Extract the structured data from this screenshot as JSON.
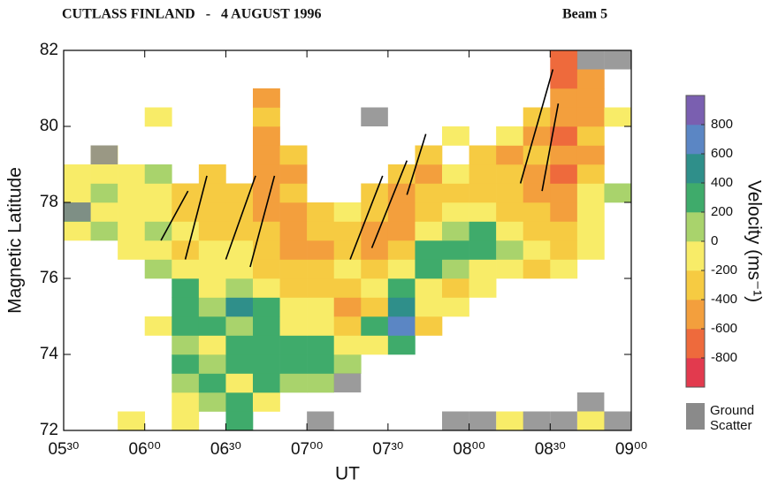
{
  "chart_data": {
    "type": "heatmap",
    "title": "CUTLASS FINLAND   -   4 AUGUST 1996",
    "subtitle": "Beam 5",
    "x_label": "UT",
    "y_label": "Magnetic Latitude",
    "xlim": [
      330,
      540
    ],
    "ylim": [
      72,
      82
    ],
    "xticks": [
      {
        "value": 330,
        "label": "05³⁰"
      },
      {
        "value": 360,
        "label": "06⁰⁰"
      },
      {
        "value": 390,
        "label": "06³⁰"
      },
      {
        "value": 420,
        "label": "07⁰⁰"
      },
      {
        "value": 450,
        "label": "07³⁰"
      },
      {
        "value": 480,
        "label": "08⁰⁰"
      },
      {
        "value": 510,
        "label": "08³⁰"
      },
      {
        "value": 540,
        "label": "09⁰⁰"
      }
    ],
    "yticks": [
      72,
      74,
      76,
      78,
      80,
      82
    ],
    "xbins": [
      330,
      340,
      350,
      360,
      370,
      380,
      390,
      400,
      410,
      420,
      430,
      440,
      450,
      460,
      470,
      480,
      490,
      500,
      510,
      520,
      530,
      540
    ],
    "ybins": [
      72,
      72.5,
      73,
      73.5,
      74,
      74.5,
      75,
      75.5,
      76,
      76.5,
      77,
      77.5,
      78,
      78.5,
      79,
      79.5,
      80,
      80.5,
      81,
      81.5,
      82
    ],
    "z": [
      [
        null,
        null,
        -200,
        null,
        -100,
        null,
        200,
        null,
        null,
        null,
        null,
        null,
        null,
        null,
        null,
        null,
        -200,
        null,
        null,
        -100,
        null
      ],
      [
        null,
        null,
        null,
        null,
        -100,
        100,
        200,
        -100,
        null,
        null,
        null,
        null,
        null,
        null,
        null,
        null,
        null,
        null,
        null,
        null,
        null
      ],
      [
        null,
        null,
        null,
        null,
        100,
        200,
        -100,
        200,
        100,
        0,
        null,
        null,
        null,
        null,
        null,
        null,
        null,
        null,
        null,
        null,
        null
      ],
      [
        null,
        null,
        null,
        null,
        200,
        0,
        300,
        300,
        200,
        200,
        100,
        null,
        null,
        null,
        null,
        null,
        null,
        null,
        null,
        null,
        null
      ],
      [
        null,
        null,
        null,
        null,
        100,
        -100,
        200,
        200,
        300,
        200,
        -100,
        -200,
        300,
        null,
        null,
        null,
        null,
        null,
        null,
        null,
        null
      ],
      [
        null,
        null,
        null,
        -100,
        200,
        300,
        100,
        200,
        -200,
        -100,
        -300,
        200,
        600,
        -300,
        null,
        null,
        null,
        null,
        null,
        null,
        null
      ],
      [
        null,
        null,
        null,
        null,
        300,
        100,
        400,
        200,
        -100,
        -200,
        -600,
        -300,
        500,
        -200,
        -100,
        null,
        null,
        null,
        null,
        null,
        null
      ],
      [
        null,
        null,
        null,
        null,
        200,
        -100,
        100,
        -200,
        -300,
        -400,
        -300,
        -200,
        300,
        -200,
        -300,
        -100,
        null,
        null,
        null,
        null,
        null
      ],
      [
        null,
        null,
        null,
        100,
        -200,
        -100,
        -200,
        -300,
        -400,
        -300,
        -200,
        -300,
        -200,
        300,
        100,
        -100,
        -200,
        -300,
        -200,
        null,
        null
      ],
      [
        null,
        null,
        -200,
        -100,
        -300,
        -200,
        -200,
        -400,
        -500,
        -500,
        -400,
        -500,
        -400,
        200,
        300,
        200,
        100,
        -200,
        -300,
        -100,
        null
      ],
      [
        -100,
        100,
        -100,
        0,
        -200,
        -300,
        -300,
        -400,
        -500,
        -400,
        -300,
        -500,
        -600,
        -200,
        100,
        200,
        -200,
        -300,
        -400,
        -100,
        null
      ],
      [
        300,
        -200,
        -100,
        -200,
        -300,
        -400,
        -400,
        -500,
        -600,
        -300,
        -200,
        -400,
        -600,
        -300,
        -200,
        -100,
        -300,
        -400,
        -500,
        -200,
        null
      ],
      [
        -100,
        100,
        -200,
        -200,
        -300,
        -400,
        -300,
        -500,
        -400,
        null,
        null,
        -300,
        -500,
        -400,
        -300,
        -300,
        -400,
        -600,
        -500,
        -200,
        100
      ],
      [
        -200,
        -100,
        -200,
        100,
        null,
        -300,
        null,
        -600,
        -500,
        null,
        null,
        null,
        -400,
        -500,
        -200,
        -400,
        -300,
        -500,
        -700,
        -300,
        null
      ],
      [
        null,
        -100,
        null,
        null,
        null,
        null,
        null,
        -600,
        -400,
        null,
        null,
        null,
        null,
        -300,
        null,
        -300,
        -500,
        -400,
        -600,
        -600,
        null
      ],
      [
        null,
        null,
        null,
        null,
        null,
        null,
        null,
        -500,
        null,
        null,
        null,
        null,
        null,
        null,
        -100,
        null,
        -200,
        -500,
        -700,
        -400,
        null
      ],
      [
        null,
        null,
        null,
        -200,
        null,
        null,
        null,
        -400,
        null,
        null,
        null,
        null,
        null,
        null,
        null,
        null,
        null,
        -300,
        -600,
        -500,
        -100
      ],
      [
        null,
        null,
        null,
        null,
        null,
        null,
        null,
        -500,
        null,
        null,
        null,
        null,
        null,
        null,
        null,
        null,
        null,
        null,
        -600,
        -500,
        null
      ],
      [
        null,
        null,
        null,
        null,
        null,
        null,
        null,
        null,
        null,
        null,
        null,
        null,
        null,
        null,
        null,
        null,
        null,
        null,
        -800,
        -600,
        null
      ],
      [
        null,
        null,
        null,
        null,
        null,
        null,
        null,
        null,
        null,
        null,
        null,
        null,
        null,
        null,
        null,
        null,
        null,
        null,
        -700,
        null,
        null
      ]
    ],
    "ground_scatter": {
      "label": [
        "Ground",
        "Scatter"
      ],
      "color": "#8a8a8a",
      "x": [
        335,
        345,
        425,
        435,
        475,
        485,
        505,
        515,
        525,
        535,
        525,
        535,
        445
      ],
      "y": [
        77.75,
        79.25,
        72.25,
        73.25,
        72.25,
        72.25,
        72.25,
        72.25,
        81.75,
        81.75,
        72.75,
        72.25,
        80.25
      ]
    },
    "lines": [
      {
        "x": [
          366,
          376
        ],
        "y": [
          77.0,
          78.3
        ]
      },
      {
        "x": [
          375,
          383
        ],
        "y": [
          76.5,
          78.7
        ]
      },
      {
        "x": [
          390,
          401
        ],
        "y": [
          76.5,
          78.7
        ]
      },
      {
        "x": [
          399,
          408
        ],
        "y": [
          76.3,
          78.7
        ]
      },
      {
        "x": [
          436,
          448
        ],
        "y": [
          76.5,
          78.7
        ]
      },
      {
        "x": [
          444,
          457
        ],
        "y": [
          76.8,
          79.1
        ]
      },
      {
        "x": [
          457,
          464
        ],
        "y": [
          78.2,
          79.8
        ]
      },
      {
        "x": [
          499,
          511
        ],
        "y": [
          78.5,
          81.5
        ]
      },
      {
        "x": [
          507,
          513
        ],
        "y": [
          78.3,
          80.6
        ]
      }
    ],
    "colorbar": {
      "label": "Velocity (ms⁻¹)",
      "lim": [
        -1000,
        1000
      ],
      "ticks": [
        800,
        600,
        400,
        200,
        0,
        -200,
        -400,
        -600,
        -800
      ],
      "colors": [
        "#e23a4e",
        "#ee6a3c",
        "#f39f3d",
        "#f6cb42",
        "#f8ec68",
        "#a9d36c",
        "#3fab6b",
        "#2f8f8a",
        "#5b86c4",
        "#7a5fb0"
      ]
    }
  }
}
